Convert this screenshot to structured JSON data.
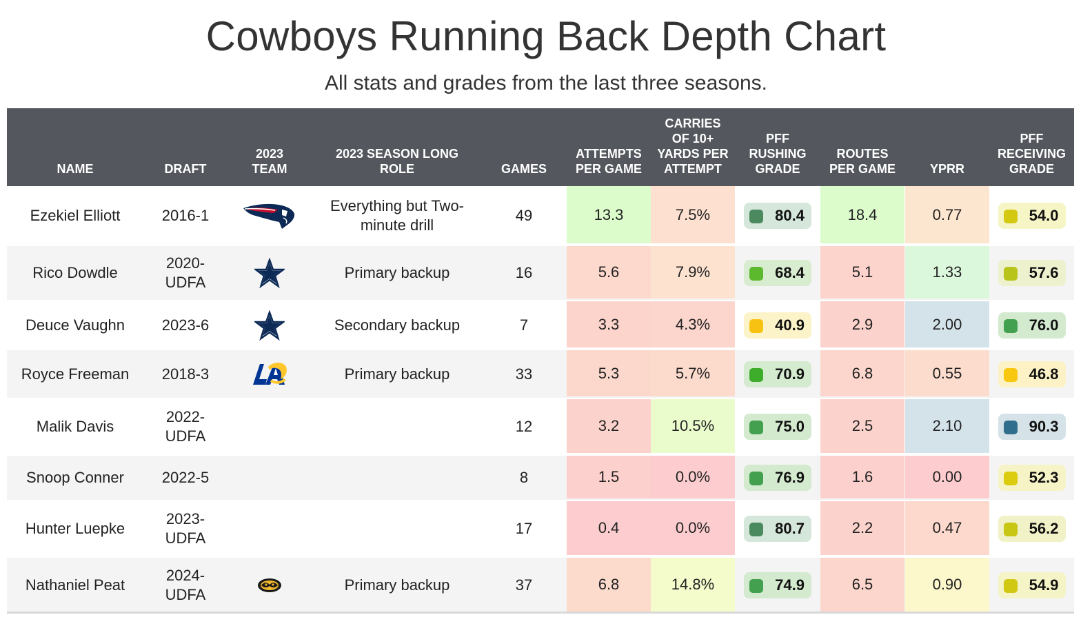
{
  "title": "Cowboys Running Back Depth Chart",
  "subtitle": "All stats and grades from the last three seasons.",
  "columns": [
    {
      "key": "name",
      "label": "NAME"
    },
    {
      "key": "draft",
      "label": "DRAFT"
    },
    {
      "key": "team",
      "label": "2023\nTEAM"
    },
    {
      "key": "role",
      "label": "2023 SEASON LONG\nROLE"
    },
    {
      "key": "games",
      "label": "GAMES"
    },
    {
      "key": "apg",
      "label": "ATTEMPTS\nPER GAME"
    },
    {
      "key": "c10",
      "label": "CARRIES\nOF 10+\nYARDS PER\nATTEMPT"
    },
    {
      "key": "rush",
      "label": "PFF\nRUSHING\nGRADE"
    },
    {
      "key": "rpg",
      "label": "ROUTES\nPER GAME"
    },
    {
      "key": "yprr",
      "label": "YPRR"
    },
    {
      "key": "recv",
      "label": "PFF\nRECEIVING\nGRADE"
    }
  ],
  "rows": [
    {
      "name": "Ezekiel Elliott",
      "draft": "2016-1",
      "team_logo": "patriots-logo",
      "role": "Everything but Two-\nminute drill",
      "games": "49",
      "apg": "13.3",
      "apg_color": "#dcfccc",
      "c10": "7.5%",
      "c10_color": "#fde0cf",
      "rush": "80.4",
      "rush_pill": "#d5e7db",
      "rush_sq": "#4b8a5e",
      "rpg": "18.4",
      "rpg_color": "#dcfccc",
      "yprr": "0.77",
      "yprr_color": "#fde6cf",
      "recv": "54.0",
      "recv_pill": "#f5f5c6",
      "recv_sq": "#d4c912"
    },
    {
      "name": "Rico Dowdle",
      "draft": "2020-\nUDFA",
      "team_logo": "cowboys-star-logo",
      "role": "Primary backup",
      "games": "16",
      "apg": "5.6",
      "apg_color": "#fcd9cc",
      "c10": "7.9%",
      "c10_color": "#fde3cf",
      "rush": "68.4",
      "rush_pill": "#d8ecd0",
      "rush_sq": "#5cb82c",
      "rpg": "5.1",
      "rpg_color": "#fcd4cc",
      "yprr": "1.33",
      "yprr_color": "#dcf8dc",
      "recv": "57.6",
      "recv_pill": "#eef1cd",
      "recv_sq": "#b8c41a"
    },
    {
      "name": "Deuce Vaughn",
      "draft": "2023-6",
      "team_logo": "cowboys-star-logo",
      "role": "Secondary backup",
      "games": "7",
      "apg": "3.3",
      "apg_color": "#fcd4cc",
      "c10": "4.3%",
      "c10_color": "#fcd5cc",
      "rush": "40.9",
      "rush_pill": "#fcf3c8",
      "rush_sq": "#f8c212",
      "rpg": "2.9",
      "rpg_color": "#fcd2cc",
      "yprr": "2.00",
      "yprr_color": "#d4e2ea",
      "recv": "76.0",
      "recv_pill": "#d3eacf",
      "recv_sq": "#42a04e"
    },
    {
      "name": "Royce Freeman",
      "draft": "2018-3",
      "team_logo": "rams-logo",
      "role": "Primary backup",
      "games": "33",
      "apg": "5.3",
      "apg_color": "#fcd8cc",
      "c10": "5.7%",
      "c10_color": "#fcdacc",
      "rush": "70.9",
      "rush_pill": "#d4ebcf",
      "rush_sq": "#3cac2a",
      "rpg": "6.8",
      "rpg_color": "#fcd6cc",
      "yprr": "0.55",
      "yprr_color": "#fcdccc",
      "recv": "46.8",
      "recv_pill": "#fcf2c6",
      "recv_sq": "#f8c810"
    },
    {
      "name": "Malik Davis",
      "draft": "2022-\nUDFA",
      "team_logo": "",
      "role": "",
      "games": "12",
      "apg": "3.2",
      "apg_color": "#fcd3cc",
      "c10": "10.5%",
      "c10_color": "#eafccc",
      "rush": "75.0",
      "rush_pill": "#d3eacf",
      "rush_sq": "#42a04e",
      "rpg": "2.5",
      "rpg_color": "#fcd3cc",
      "yprr": "2.10",
      "yprr_color": "#d4e2ea",
      "recv": "90.3",
      "recv_pill": "#d5e2e8",
      "recv_sq": "#2f6e8c"
    },
    {
      "name": "Snoop Conner",
      "draft": "2022-5",
      "team_logo": "",
      "role": "",
      "games": "8",
      "apg": "1.5",
      "apg_color": "#fcd0cc",
      "c10": "0.0%",
      "c10_color": "#fcccce",
      "rush": "76.9",
      "rush_pill": "#d3eacf",
      "rush_sq": "#42a04e",
      "rpg": "1.6",
      "rpg_color": "#fcd0cc",
      "yprr": "0.00",
      "yprr_color": "#fcccce",
      "recv": "52.3",
      "recv_pill": "#f6f4c6",
      "recv_sq": "#dccc10"
    },
    {
      "name": "Hunter Luepke",
      "draft": "2023-\nUDFA",
      "team_logo": "",
      "role": "",
      "games": "17",
      "apg": "0.4",
      "apg_color": "#fcccce",
      "c10": "0.0%",
      "c10_color": "#fcccce",
      "rush": "80.7",
      "rush_pill": "#d5e7db",
      "rush_sq": "#4b8a5e",
      "rpg": "2.2",
      "rpg_color": "#fcd2cc",
      "yprr": "0.47",
      "yprr_color": "#fcd9cc",
      "recv": "56.2",
      "recv_pill": "#f1f2c8",
      "recv_sq": "#c8c814"
    },
    {
      "name": "Nathaniel Peat",
      "draft": "2024-\nUDFA",
      "team_logo": "mizzou-logo",
      "role": "Primary backup",
      "games": "37",
      "apg": "6.8",
      "apg_color": "#fcdacc",
      "c10": "14.8%",
      "c10_color": "#f4fccc",
      "rush": "74.9",
      "rush_pill": "#d3eacf",
      "rush_sq": "#42a04e",
      "rpg": "6.5",
      "rpg_color": "#fcd6cc",
      "yprr": "0.90",
      "yprr_color": "#fcf8cc",
      "recv": "54.9",
      "recv_pill": "#f4f4c6",
      "recv_sq": "#d0c812"
    }
  ],
  "chart_data": {
    "type": "table",
    "title": "Cowboys Running Back Depth Chart",
    "subtitle": "All stats and grades from the last three seasons.",
    "headers": [
      "NAME",
      "DRAFT",
      "2023 TEAM",
      "2023 SEASON LONG ROLE",
      "GAMES",
      "ATTEMPTS PER GAME",
      "CARRIES OF 10+ YARDS PER ATTEMPT",
      "PFF RUSHING GRADE",
      "ROUTES PER GAME",
      "YPRR",
      "PFF RECEIVING GRADE"
    ],
    "rows": [
      [
        "Ezekiel Elliott",
        "2016-1",
        "Patriots",
        "Everything but Two-minute drill",
        49,
        13.3,
        "7.5%",
        80.4,
        18.4,
        0.77,
        54.0
      ],
      [
        "Rico Dowdle",
        "2020-UDFA",
        "Cowboys",
        "Primary backup",
        16,
        5.6,
        "7.9%",
        68.4,
        5.1,
        1.33,
        57.6
      ],
      [
        "Deuce Vaughn",
        "2023-6",
        "Cowboys",
        "Secondary backup",
        7,
        3.3,
        "4.3%",
        40.9,
        2.9,
        2.0,
        76.0
      ],
      [
        "Royce Freeman",
        "2018-3",
        "Rams",
        "Primary backup",
        33,
        5.3,
        "5.7%",
        70.9,
        6.8,
        0.55,
        46.8
      ],
      [
        "Malik Davis",
        "2022-UDFA",
        "",
        "",
        12,
        3.2,
        "10.5%",
        75.0,
        2.5,
        2.1,
        90.3
      ],
      [
        "Snoop Conner",
        "2022-5",
        "",
        "",
        8,
        1.5,
        "0.0%",
        76.9,
        1.6,
        0.0,
        52.3
      ],
      [
        "Hunter Luepke",
        "2023-UDFA",
        "",
        "",
        17,
        0.4,
        "0.0%",
        80.7,
        2.2,
        0.47,
        56.2
      ],
      [
        "Nathaniel Peat",
        "2024-UDFA",
        "Missouri",
        "Primary backup",
        37,
        6.8,
        "14.8%",
        74.9,
        6.5,
        0.9,
        54.9
      ]
    ]
  }
}
